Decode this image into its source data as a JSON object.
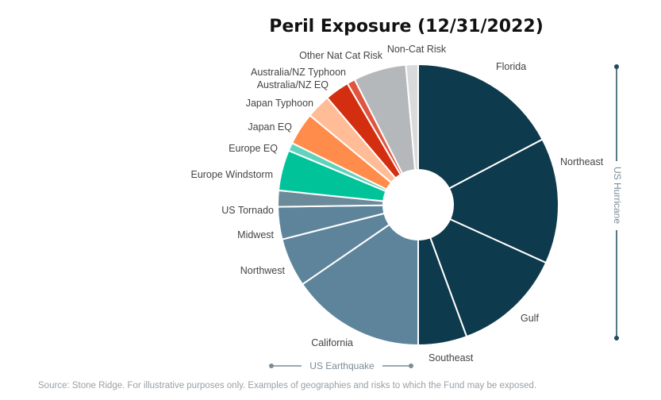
{
  "chart_data": {
    "type": "pie",
    "title": "Peril Exposure (12/31/2022)",
    "slices": [
      {
        "label": "Florida",
        "value": 18.5,
        "color": "#0d3a4c"
      },
      {
        "label": "Northeast",
        "value": 15.5,
        "color": "#0d3a4c"
      },
      {
        "label": "Gulf",
        "value": 13.5,
        "color": "#0d3a4c"
      },
      {
        "label": "Southeast",
        "value": 6.0,
        "color": "#0d3a4c"
      },
      {
        "label": "California",
        "value": 16.5,
        "color": "#5e849b"
      },
      {
        "label": "Northwest",
        "value": 6.0,
        "color": "#5e849b"
      },
      {
        "label": "Midwest",
        "value": 4.0,
        "color": "#5e849b"
      },
      {
        "label": "US Tornado",
        "value": 2.0,
        "color": "#6b8a9a"
      },
      {
        "label": "Europe Windstorm",
        "value": 5.0,
        "color": "#00c39a"
      },
      {
        "label": "Europe EQ",
        "value": 1.0,
        "color": "#5fd3bb"
      },
      {
        "label": "Japan EQ",
        "value": 4.0,
        "color": "#ff8c4a"
      },
      {
        "label": "Japan Typhoon",
        "value": 3.0,
        "color": "#ffbc96"
      },
      {
        "label": "Australia/NZ EQ",
        "value": 3.0,
        "color": "#d42e10"
      },
      {
        "label": "Australia/NZ Typhoon",
        "value": 1.0,
        "color": "#e0553f"
      },
      {
        "label": "Other Nat Cat Risk",
        "value": 6.5,
        "color": "#b5b8bb"
      },
      {
        "label": "Non-Cat Risk",
        "value": 1.5,
        "color": "#d9dadb"
      }
    ],
    "groups": [
      {
        "label": "US Hurricane",
        "slices": [
          "Florida",
          "Northeast",
          "Gulf",
          "Southeast"
        ]
      },
      {
        "label": "US Earthquake",
        "slices": [
          "California",
          "Northwest",
          "Midwest"
        ]
      }
    ]
  },
  "footnote": "Source: Stone Ridge. For illustrative purposes only. Examples of geographies and risks to which the Fund may be exposed."
}
